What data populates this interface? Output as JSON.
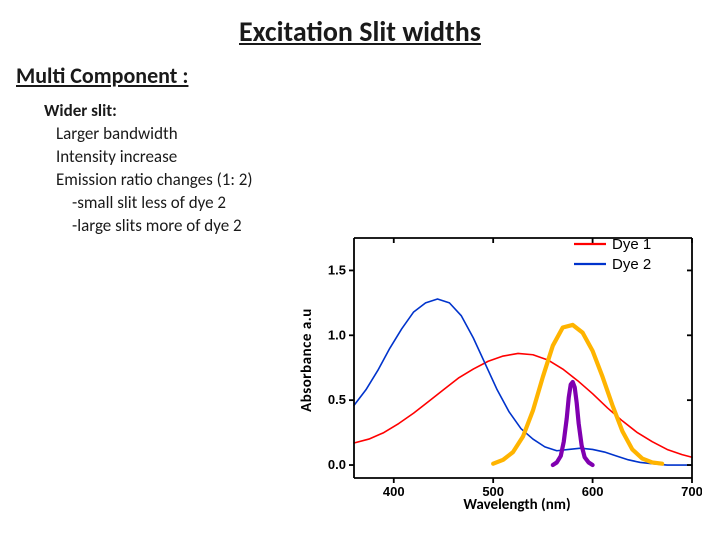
{
  "title": "Excitation Slit widths",
  "subtitle": "Multi Component :",
  "list_header": "Wider slit:",
  "list_items": {
    "i0": "Larger bandwidth",
    "i1": "Intensity increase",
    "i2": "Emission ratio changes (1: 2)",
    "i3": "-small slit less of dye 2",
    "i4": "-large slits more of dye 2"
  },
  "chart": {
    "type": "line",
    "xlabel": "Wavelength (nm)",
    "ylabel": "Absorbance a.u",
    "xlim": [
      360,
      700
    ],
    "ylim": [
      -0.1,
      1.75
    ],
    "xticks": [
      400,
      500,
      600,
      700
    ],
    "yticks": [
      0.0,
      0.5,
      1.0,
      1.5
    ],
    "ytick_labels": [
      "0.0",
      "0.5",
      "1.0",
      "1.5"
    ],
    "background_color": "#ffffff",
    "axis_color": "#000000",
    "tick_length": 5,
    "axis_line_width": 1.8,
    "title_fontsize": 28,
    "label_fontsize": 15,
    "tick_fontsize": 13,
    "legend": {
      "items": {
        "d1": "Dye 1",
        "d2": "Dye 2"
      },
      "colors": {
        "d1": "#ff0000",
        "d2": "#0033cc"
      },
      "line_width": 2.2,
      "pos": "top-right"
    },
    "series": {
      "dye1": {
        "color": "#ff0000",
        "width": 1.6,
        "points": [
          [
            360,
            0.17
          ],
          [
            375,
            0.2
          ],
          [
            390,
            0.25
          ],
          [
            405,
            0.32
          ],
          [
            420,
            0.4
          ],
          [
            435,
            0.49
          ],
          [
            450,
            0.58
          ],
          [
            465,
            0.67
          ],
          [
            480,
            0.74
          ],
          [
            495,
            0.8
          ],
          [
            510,
            0.84
          ],
          [
            525,
            0.86
          ],
          [
            540,
            0.85
          ],
          [
            555,
            0.81
          ],
          [
            570,
            0.74
          ],
          [
            585,
            0.65
          ],
          [
            600,
            0.55
          ],
          [
            615,
            0.44
          ],
          [
            630,
            0.34
          ],
          [
            645,
            0.25
          ],
          [
            660,
            0.18
          ],
          [
            675,
            0.12
          ],
          [
            690,
            0.08
          ],
          [
            700,
            0.06
          ]
        ]
      },
      "dye2": {
        "color": "#0033cc",
        "width": 1.6,
        "points": [
          [
            360,
            0.46
          ],
          [
            372,
            0.58
          ],
          [
            384,
            0.73
          ],
          [
            396,
            0.9
          ],
          [
            408,
            1.05
          ],
          [
            420,
            1.18
          ],
          [
            432,
            1.25
          ],
          [
            444,
            1.28
          ],
          [
            456,
            1.25
          ],
          [
            468,
            1.15
          ],
          [
            480,
            0.98
          ],
          [
            492,
            0.78
          ],
          [
            504,
            0.58
          ],
          [
            516,
            0.41
          ],
          [
            528,
            0.28
          ],
          [
            540,
            0.2
          ],
          [
            552,
            0.14
          ],
          [
            564,
            0.11
          ],
          [
            576,
            0.12
          ],
          [
            588,
            0.13
          ],
          [
            600,
            0.12
          ],
          [
            612,
            0.1
          ],
          [
            624,
            0.07
          ],
          [
            636,
            0.04
          ],
          [
            648,
            0.02
          ],
          [
            660,
            0.01
          ],
          [
            675,
            0.0
          ],
          [
            690,
            0.0
          ],
          [
            700,
            0.0
          ]
        ]
      },
      "slit_wide": {
        "color": "#ffb400",
        "width": 4.2,
        "points": [
          [
            500,
            0.01
          ],
          [
            510,
            0.04
          ],
          [
            520,
            0.1
          ],
          [
            530,
            0.22
          ],
          [
            540,
            0.42
          ],
          [
            550,
            0.68
          ],
          [
            560,
            0.92
          ],
          [
            570,
            1.06
          ],
          [
            580,
            1.08
          ],
          [
            590,
            1.02
          ],
          [
            600,
            0.88
          ],
          [
            610,
            0.68
          ],
          [
            620,
            0.46
          ],
          [
            630,
            0.26
          ],
          [
            640,
            0.12
          ],
          [
            650,
            0.05
          ],
          [
            660,
            0.02
          ],
          [
            670,
            0.01
          ]
        ]
      },
      "slit_narrow": {
        "color": "#8000b0",
        "width": 4.2,
        "points": [
          [
            560,
            0.0
          ],
          [
            564,
            0.02
          ],
          [
            568,
            0.07
          ],
          [
            571,
            0.18
          ],
          [
            574,
            0.36
          ],
          [
            576,
            0.52
          ],
          [
            578,
            0.62
          ],
          [
            580,
            0.64
          ],
          [
            582,
            0.6
          ],
          [
            584,
            0.48
          ],
          [
            586,
            0.32
          ],
          [
            589,
            0.15
          ],
          [
            592,
            0.06
          ],
          [
            596,
            0.02
          ],
          [
            600,
            0.0
          ]
        ]
      }
    }
  }
}
